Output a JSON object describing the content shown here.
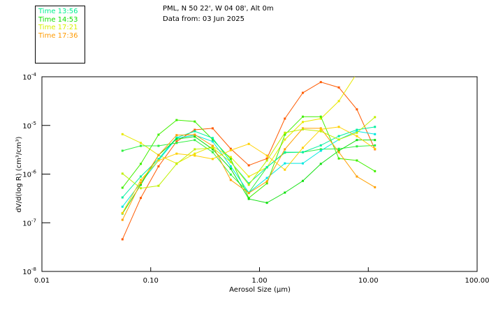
{
  "header": {
    "location": "PML, N 50 22', W 04 08', Alt 0m",
    "date": "Data from: 03 Jun 2025"
  },
  "legend": [
    {
      "label": "Time 13:56",
      "color": "#00f090"
    },
    {
      "label": "Time 14:53",
      "color": "#10e000"
    },
    {
      "label": "Time 17:21",
      "color": "#d8f000"
    },
    {
      "label": "Time 17:36",
      "color": "#ff9a00"
    }
  ],
  "chart_data": {
    "type": "line",
    "xlabel": "Aerosol Size (μm)",
    "ylabel": "dV/d(log R) (cm³/cm³)",
    "xscale": "log",
    "yscale": "log",
    "xlim": [
      0.01,
      100
    ],
    "ylim": [
      1e-08,
      0.0001
    ],
    "xticks": [
      "0.01",
      "0.10",
      "1.00",
      "10.00",
      "100.00"
    ],
    "yticks": [
      {
        "base": "10",
        "exp": "-4"
      },
      {
        "base": "10",
        "exp": "-5"
      },
      {
        "base": "10",
        "exp": "-6"
      },
      {
        "base": "10",
        "exp": "-7"
      },
      {
        "base": "10",
        "exp": "-8"
      }
    ],
    "x": [
      0.055,
      0.081,
      0.118,
      0.173,
      0.254,
      0.371,
      0.544,
      0.797,
      1.17,
      1.71,
      2.5,
      3.66,
      5.36,
      7.85,
      11.5
    ],
    "series": [
      {
        "color": "#ff5a00",
        "values_log10": [
          -7.34,
          -6.49,
          -5.84,
          -5.33,
          -5.09,
          -5.06,
          -5.48,
          -5.82,
          -5.68,
          -4.86,
          -4.33,
          -4.11,
          -4.22,
          -4.67,
          -5.49
        ]
      },
      {
        "color": "#e8e800",
        "values_log10": [
          -5.18,
          -5.36,
          -5.61,
          -5.78,
          -5.58,
          -5.43,
          -5.65,
          -6.05,
          -5.86,
          -5.29,
          -4.93,
          -4.86,
          -4.5,
          -3.93,
          -3.5
        ]
      },
      {
        "color": "#40f000",
        "values_log10": [
          -6.28,
          -5.79,
          -5.19,
          -4.89,
          -4.92,
          -5.29,
          -5.69,
          -6.49,
          -6.19,
          -5.19,
          -4.82,
          -4.82,
          -5.68,
          -5.72,
          -5.94
        ]
      },
      {
        "color": "#30f040",
        "values_log10": [
          -5.52,
          -5.42,
          -5.42,
          -5.36,
          -5.3,
          -5.55,
          -6.01,
          -6.38,
          -5.86,
          -5.56,
          -5.55,
          -5.49,
          -5.48,
          -5.43,
          -5.41
        ]
      },
      {
        "color": "#00f0a0",
        "values_log10": [
          -6.48,
          -6.05,
          -5.69,
          -5.25,
          -5.12,
          -5.26,
          -5.75,
          -6.19,
          -5.86,
          -5.55,
          -5.55,
          -5.41,
          -5.22,
          -5.09,
          -5.03
        ]
      },
      {
        "color": "#00e8e0",
        "values_log10": [
          -6.67,
          -6.18,
          -5.72,
          -5.26,
          -5.2,
          -5.33,
          -5.84,
          -6.38,
          -6.08,
          -5.78,
          -5.78,
          -5.52,
          -5.29,
          -5.12,
          -5.18
        ]
      },
      {
        "color": "#10e010",
        "values_log10": [
          -6.81,
          -6.22,
          -5.61,
          -5.28,
          -5.23,
          -5.49,
          -5.89,
          -6.51,
          -6.59,
          -6.38,
          -6.14,
          -5.79,
          -5.52,
          -5.3,
          -5.3
        ]
      },
      {
        "color": "#ffa000",
        "values_log10": [
          -6.94,
          -6.18,
          -5.61,
          -5.2,
          -5.19,
          -5.42,
          -6.12,
          -6.39,
          -6.15,
          -5.49,
          -5.06,
          -5.06,
          -5.55,
          -6.05,
          -6.27
        ]
      },
      {
        "color": "#c0f000",
        "values_log10": [
          -5.99,
          -6.29,
          -6.24,
          -5.79,
          -5.49,
          -5.46,
          -5.75,
          -6.22,
          -5.72,
          -5.15,
          -5.08,
          -5.12,
          -5.29,
          -5.15,
          -4.83
        ]
      },
      {
        "color": "#ffd000",
        "values_log10": [
          -6.8,
          -6.12,
          -5.72,
          -5.58,
          -5.62,
          -5.69,
          -5.51,
          -5.38,
          -5.62,
          -5.91,
          -5.46,
          -5.08,
          -5.03,
          -5.22,
          -5.48
        ]
      }
    ]
  }
}
